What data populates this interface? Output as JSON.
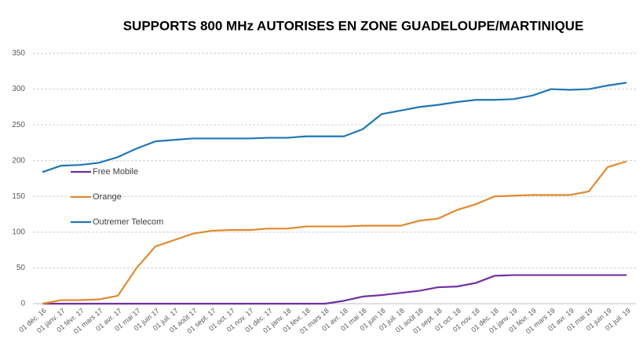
{
  "chart_data": {
    "type": "line",
    "title": "SUPPORTS 800 MHz AUTORISES EN ZONE GUADELOUPE/MARTINIQUE",
    "categories": [
      "01 déc. 16",
      "01 janv. 17",
      "01 févr. 17",
      "01 mars 17",
      "01 avr. 17",
      "01 mai 17",
      "01 juin 17",
      "01 juil. 17",
      "01 août 17",
      "01 sept. 17",
      "01 oct. 17",
      "01 nov. 17",
      "01 déc. 17",
      "01 janv. 18",
      "01 févr. 18",
      "01 mars 18",
      "01 avr. 18",
      "01 mai 18",
      "01 juin 18",
      "01 juil. 18",
      "01 août 18",
      "01 sept. 18",
      "01 oct. 18",
      "01 nov. 18",
      "01 déc. 18",
      "01 janv. 19",
      "01 févr. 19",
      "01 mars 19",
      "01 avr. 19",
      "01 mai 19",
      "01 juin 19",
      "01 juil. 19"
    ],
    "series": [
      {
        "name": "Free Mobile",
        "color": "#7030a0",
        "values": [
          0,
          0,
          0,
          0,
          0,
          0,
          0,
          0,
          0,
          0,
          0,
          0,
          0,
          0,
          0,
          0,
          4,
          10,
          12,
          15,
          18,
          23,
          24,
          29,
          39,
          40,
          40,
          40,
          40,
          40,
          40,
          40
        ]
      },
      {
        "name": "Orange",
        "color": "#e08a2c",
        "values": [
          0,
          5,
          5,
          6,
          11,
          50,
          80,
          89,
          98,
          102,
          103,
          103,
          105,
          105,
          108,
          108,
          108,
          109,
          109,
          109,
          116,
          119,
          131,
          139,
          150,
          151,
          152,
          152,
          152,
          157,
          191,
          199
        ]
      },
      {
        "name": "Outremer Telecom",
        "color": "#1f77b4",
        "values": [
          184,
          193,
          194,
          197,
          205,
          217,
          227,
          229,
          231,
          231,
          231,
          231,
          232,
          232,
          234,
          234,
          234,
          244,
          265,
          270,
          275,
          278,
          282,
          285,
          285,
          286,
          291,
          300,
          299,
          300,
          305,
          309
        ]
      }
    ],
    "ylim": [
      0,
      350
    ],
    "yticks": [
      0,
      50,
      100,
      150,
      200,
      250,
      300,
      350
    ],
    "grid": true,
    "legend": "left"
  }
}
